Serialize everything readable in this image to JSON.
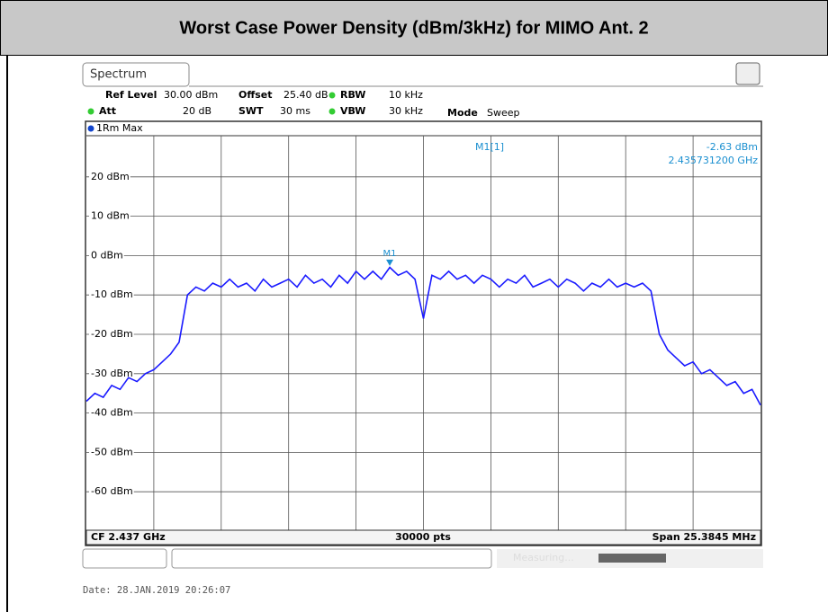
{
  "header": {
    "title": "Worst Case Power Density (dBm/3kHz) for MIMO Ant. 2"
  },
  "screen": {
    "tab": "Spectrum",
    "settings": {
      "ref_level_label": "Ref Level",
      "ref_level": "30.00 dBm",
      "offset_label": "Offset",
      "offset": "25.40 dB",
      "rbw_label": "RBW",
      "rbw": "10 kHz",
      "att_label": "Att",
      "att": "20 dB",
      "swt_label": "SWT",
      "swt": "30 ms",
      "vbw_label": "VBW",
      "vbw": "30 kHz",
      "mode_label": "Mode",
      "mode": "Sweep"
    },
    "trace_label": "1Rm Max",
    "marker": {
      "name": "M1",
      "readout_label": "M1[1]",
      "level": "-2.63 dBm",
      "frequency": "2.435731200 GHz",
      "value": -2.63,
      "position": 0.45
    },
    "plot": {
      "ylim": [
        -70,
        30
      ],
      "yticks": [
        {
          "value": 20,
          "label": "20 dBm"
        },
        {
          "value": 10,
          "label": "10 dBm"
        },
        {
          "value": 0,
          "label": "0 dBm"
        },
        {
          "value": -10,
          "label": "-10 dBm"
        },
        {
          "value": -20,
          "label": "-20 dBm"
        },
        {
          "value": -30,
          "label": "-30 dBm"
        },
        {
          "value": -40,
          "label": "-40 dBm"
        },
        {
          "value": -50,
          "label": "-50 dBm"
        },
        {
          "value": -60,
          "label": "-60 dBm"
        }
      ],
      "color": "#1a1aff",
      "trace": [
        -37,
        -35,
        -36,
        -33,
        -34,
        -31,
        -32,
        -30,
        -29,
        -27,
        -25,
        -22,
        -10,
        -8,
        -9,
        -7,
        -8,
        -6,
        -8,
        -7,
        -9,
        -6,
        -8,
        -7,
        -6,
        -8,
        -5,
        -7,
        -6,
        -8,
        -5,
        -7,
        -4,
        -6,
        -4,
        -6,
        -3,
        -5,
        -4,
        -6,
        -16,
        -5,
        -6,
        -4,
        -6,
        -5,
        -7,
        -5,
        -6,
        -8,
        -6,
        -7,
        -5,
        -8,
        -7,
        -6,
        -8,
        -6,
        -7,
        -9,
        -7,
        -8,
        -6,
        -8,
        -7,
        -8,
        -7,
        -9,
        -20,
        -24,
        -26,
        -28,
        -27,
        -30,
        -29,
        -31,
        -33,
        -32,
        -35,
        -34,
        -38
      ]
    },
    "footer": {
      "center_frequency": "CF 2.437 GHz",
      "points": "30000 pts",
      "span": "Span 25.3845 MHz"
    },
    "status": "Measuring...",
    "date": "Date: 28.JAN.2019  20:26:07"
  }
}
